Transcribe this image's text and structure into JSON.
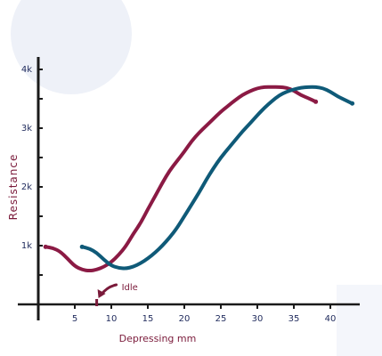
{
  "chart_data": {
    "type": "line",
    "title": "",
    "xlabel": "Depressing mm",
    "ylabel": "Resistance",
    "xlim": [
      -0.5,
      44
    ],
    "ylim": [
      -500,
      4200
    ],
    "x_ticks": [
      5,
      10,
      15,
      20,
      25,
      30,
      35,
      40
    ],
    "y_ticks": [
      1000,
      2000,
      3000,
      4000
    ],
    "y_tick_labels": [
      "1k",
      "2k",
      "3k",
      "4k"
    ],
    "grid": false,
    "legend": "none",
    "series": [
      {
        "color": "#8b1a44",
        "points": [
          [
            1,
            980
          ],
          [
            2,
            960
          ],
          [
            3,
            900
          ],
          [
            4,
            780
          ],
          [
            5,
            650
          ],
          [
            6,
            590
          ],
          [
            7,
            570
          ],
          [
            8,
            590
          ],
          [
            9,
            640
          ],
          [
            10,
            720
          ],
          [
            11,
            840
          ],
          [
            12,
            990
          ],
          [
            13,
            1200
          ],
          [
            14,
            1380
          ],
          [
            15,
            1620
          ],
          [
            16,
            1840
          ],
          [
            17,
            2070
          ],
          [
            18,
            2280
          ],
          [
            19,
            2440
          ],
          [
            20,
            2600
          ],
          [
            21,
            2780
          ],
          [
            22,
            2920
          ],
          [
            23,
            3040
          ],
          [
            24,
            3160
          ],
          [
            25,
            3280
          ],
          [
            26,
            3380
          ],
          [
            27,
            3480
          ],
          [
            28,
            3570
          ],
          [
            29,
            3630
          ],
          [
            30,
            3680
          ],
          [
            31,
            3700
          ],
          [
            32,
            3700
          ],
          [
            33,
            3700
          ],
          [
            34,
            3690
          ],
          [
            35,
            3640
          ],
          [
            36,
            3560
          ],
          [
            37,
            3510
          ],
          [
            38,
            3450
          ]
        ]
      },
      {
        "color": "#0f5a78",
        "points": [
          [
            6,
            980
          ],
          [
            7,
            950
          ],
          [
            8,
            880
          ],
          [
            9,
            760
          ],
          [
            10,
            660
          ],
          [
            11,
            620
          ],
          [
            12,
            610
          ],
          [
            13,
            640
          ],
          [
            14,
            700
          ],
          [
            15,
            780
          ],
          [
            16,
            880
          ],
          [
            17,
            1000
          ],
          [
            18,
            1140
          ],
          [
            19,
            1300
          ],
          [
            20,
            1500
          ],
          [
            21,
            1700
          ],
          [
            22,
            1900
          ],
          [
            23,
            2120
          ],
          [
            24,
            2320
          ],
          [
            25,
            2500
          ],
          [
            26,
            2650
          ],
          [
            27,
            2800
          ],
          [
            28,
            2950
          ],
          [
            29,
            3080
          ],
          [
            30,
            3220
          ],
          [
            31,
            3350
          ],
          [
            32,
            3460
          ],
          [
            33,
            3560
          ],
          [
            34,
            3620
          ],
          [
            35,
            3660
          ],
          [
            36,
            3690
          ],
          [
            37,
            3700
          ],
          [
            38,
            3700
          ],
          [
            39,
            3680
          ],
          [
            40,
            3620
          ],
          [
            41,
            3540
          ],
          [
            42,
            3480
          ],
          [
            43,
            3420
          ]
        ]
      }
    ],
    "annotations": [
      {
        "label": "Idle",
        "x": 8,
        "y": -380
      }
    ]
  }
}
